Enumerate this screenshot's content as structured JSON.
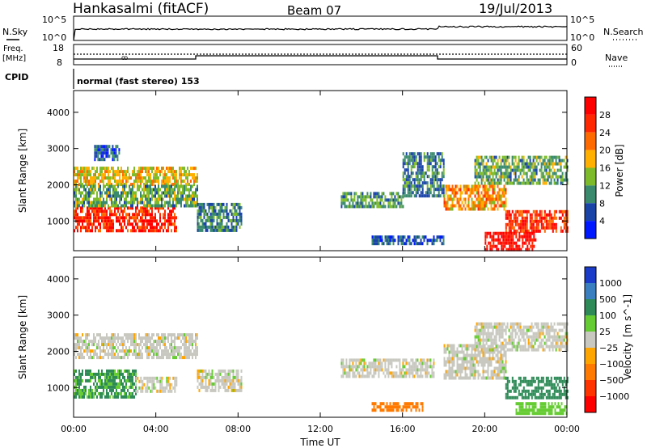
{
  "header": {
    "station": "Hankasalmi (fitACF)",
    "beam": "Beam 07",
    "date": "19/Jul/2013"
  },
  "top_panels": {
    "nsky_label": "N.Sky",
    "nsky_ticks": [
      "10^5",
      "10^0"
    ],
    "nsearch_label": "N.Search",
    "nsearch_ticks": [
      "10^5",
      "10^0"
    ],
    "freq_label_1": "Freq.",
    "freq_label_2": "[MHz]",
    "freq_ticks": [
      "18",
      "8"
    ],
    "nave_label": "Nave",
    "nave_ticks": [
      "60",
      "0"
    ],
    "cpid_label": "CPID",
    "cpid_text": "normal (fast stereo) 153"
  },
  "chart_data": [
    {
      "type": "heatmap",
      "title": "",
      "xlabel": "Time UT",
      "ylabel": "Slant Range [km]",
      "x_ticks": [
        "00:00",
        "04:00",
        "08:00",
        "12:00",
        "16:00",
        "20:00",
        "00:00"
      ],
      "y_ticks": [
        1000,
        2000,
        3000,
        4000
      ],
      "xlim_hours": [
        0,
        24
      ],
      "ylim_km": [
        180,
        4600
      ],
      "colorbar_label": "Power [dB]",
      "colorbar_ticks": [
        4,
        8,
        12,
        16,
        20,
        24,
        28
      ],
      "colorbar_range": [
        0,
        32
      ],
      "colors": [
        "#0018ff",
        "#1a44a8",
        "#3a8a6e",
        "#7dbb2a",
        "#ffb000",
        "#ff6a00",
        "#ff2800",
        "#ff0000"
      ],
      "bands": [
        {
          "t0": 0.0,
          "t1": 6.0,
          "r0": 2000,
          "r1": 2500,
          "value": 17
        },
        {
          "t0": 0.0,
          "t1": 5.0,
          "r0": 700,
          "r1": 1400,
          "value": 27
        },
        {
          "t0": 0.0,
          "t1": 6.0,
          "r0": 1400,
          "r1": 2000,
          "value": 12
        },
        {
          "t0": 1.0,
          "t1": 2.2,
          "r0": 2700,
          "r1": 3100,
          "value": 7
        },
        {
          "t0": 6.0,
          "t1": 8.2,
          "r0": 700,
          "r1": 1500,
          "value": 10
        },
        {
          "t0": 13.0,
          "t1": 16.0,
          "r0": 1400,
          "r1": 1800,
          "value": 11
        },
        {
          "t0": 16.0,
          "t1": 18.0,
          "r0": 1700,
          "r1": 2900,
          "value": 9
        },
        {
          "t0": 18.0,
          "t1": 21.0,
          "r0": 1300,
          "r1": 2000,
          "value": 20
        },
        {
          "t0": 19.5,
          "t1": 24.0,
          "r0": 2000,
          "r1": 2800,
          "value": 12
        },
        {
          "t0": 21.0,
          "t1": 24.0,
          "r0": 700,
          "r1": 1300,
          "value": 26
        },
        {
          "t0": 20.0,
          "t1": 22.5,
          "r0": 250,
          "r1": 700,
          "value": 30
        },
        {
          "t0": 14.5,
          "t1": 18.0,
          "r0": 400,
          "r1": 600,
          "value": 7
        }
      ]
    },
    {
      "type": "heatmap",
      "title": "",
      "xlabel": "Time UT",
      "ylabel": "Slant Range [km]",
      "x_ticks": [
        "00:00",
        "04:00",
        "08:00",
        "12:00",
        "16:00",
        "20:00",
        "00:00"
      ],
      "y_ticks": [
        1000,
        2000,
        3000,
        4000
      ],
      "xlim_hours": [
        0,
        24
      ],
      "ylim_km": [
        180,
        4600
      ],
      "colorbar_label": "Velocity",
      "colorbar_unit": "[m s^-1]",
      "colorbar_ticks": [
        "1000",
        "500",
        "100",
        "25",
        "−25",
        "−100",
        "−500",
        "−1000"
      ],
      "colors": [
        "#1a3cc8",
        "#3a7fbf",
        "#2e8b57",
        "#66cc33",
        "#c8c8c0",
        "#ffa500",
        "#ff7a00",
        "#ff3300",
        "#ff0000"
      ],
      "bands": [
        {
          "t0": 0.0,
          "t1": 6.0,
          "r0": 1800,
          "r1": 2500,
          "value": 0
        },
        {
          "t0": 0.0,
          "t1": 3.0,
          "r0": 700,
          "r1": 1500,
          "value": 120
        },
        {
          "t0": 3.0,
          "t1": 5.0,
          "r0": 900,
          "r1": 1300,
          "value": 0
        },
        {
          "t0": 6.0,
          "t1": 8.2,
          "r0": 900,
          "r1": 1500,
          "value": 0
        },
        {
          "t0": 13.0,
          "t1": 17.5,
          "r0": 1300,
          "r1": 1800,
          "value": 0
        },
        {
          "t0": 14.5,
          "t1": 17.0,
          "r0": 420,
          "r1": 600,
          "value": -200
        },
        {
          "t0": 18.0,
          "t1": 21.0,
          "r0": 1300,
          "r1": 2200,
          "value": 0
        },
        {
          "t0": 19.5,
          "t1": 24.0,
          "r0": 2000,
          "r1": 2800,
          "value": 0
        },
        {
          "t0": 21.0,
          "t1": 24.0,
          "r0": 700,
          "r1": 1300,
          "value": 300
        },
        {
          "t0": 21.5,
          "t1": 24.0,
          "r0": 250,
          "r1": 600,
          "value": 60
        }
      ]
    }
  ]
}
